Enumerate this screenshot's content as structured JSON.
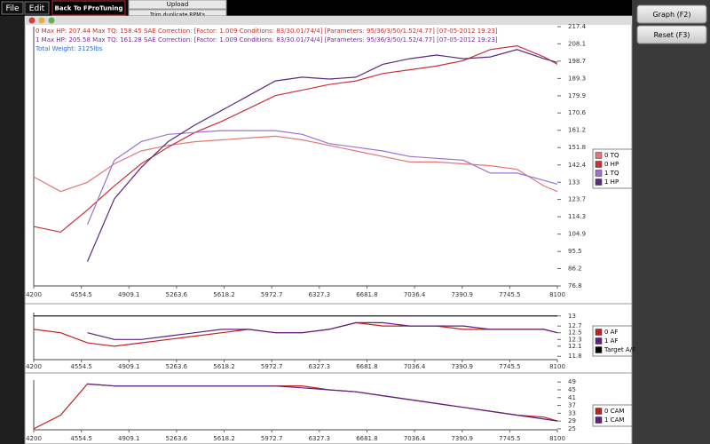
{
  "menu": [
    "File",
    "Edit"
  ],
  "back_button": "Back To FProTuning",
  "tabs": [
    "Upload",
    "Trim duplicate RPM's"
  ],
  "side_buttons": [
    "Graph (F2)",
    "Reset (F3)"
  ],
  "header_lines": [
    "0 Max HP: 207.44 Max TQ: 158.45 SAE Correction: [Factor: 1.009 Conditions: 83/30.01/74/4] [Parameters: 95/36/3/50/1.52/4.77] [07-05-2012 19:23]",
    "1 Max HP: 205.58 Max TQ: 161.28 SAE Correction: [Factor: 1.009 Conditions: 83/30.01/74/4] [Parameters: 95/36/3/50/1.52/4.77] [07-05-2012 19:23]",
    "Total Weight: 3125lbs"
  ],
  "charts": [
    {
      "type": "line",
      "x": [
        4200,
        4400,
        4600,
        4800,
        5000,
        5200,
        5400,
        5600,
        5800,
        6000,
        6200,
        6400,
        6600,
        6800,
        7000,
        7200,
        7400,
        7600,
        7800,
        8000,
        8100
      ],
      "xlim": [
        4200,
        8100
      ],
      "xticks": [
        4200,
        4554.5,
        4909.1,
        5263.6,
        5618.2,
        5972.7,
        6327.3,
        6681.8,
        7036.4,
        7390.9,
        7745.5,
        8100
      ],
      "ylim": [
        76.8,
        217.4
      ],
      "yticks": [
        217.4,
        208.1,
        198.7,
        189.3,
        179.9,
        170.6,
        161.2,
        151.8,
        142.4,
        133,
        123.7,
        114.3,
        104.9,
        95.5,
        86.2,
        76.8
      ],
      "series": [
        {
          "name": "0 TQ",
          "color": "#e07878",
          "values": [
            136,
            128,
            133,
            143,
            150,
            153,
            155,
            156,
            157,
            158,
            156,
            153,
            150,
            147,
            144,
            144,
            143,
            142,
            140,
            131,
            128
          ]
        },
        {
          "name": "0 HP",
          "color": "#c8303c",
          "values": [
            109,
            106,
            118,
            131,
            143,
            152,
            160,
            166,
            173,
            180,
            183,
            186,
            188,
            192,
            194,
            196,
            199,
            205,
            207,
            201,
            197
          ]
        },
        {
          "name": "1 TQ",
          "color": "#a070d0",
          "values": [
            null,
            null,
            110,
            145,
            155,
            159,
            160,
            161,
            161,
            161,
            159,
            154,
            152,
            150,
            147,
            146,
            145,
            138,
            138,
            134,
            132
          ]
        },
        {
          "name": "1 HP",
          "color": "#5a2a80",
          "values": [
            null,
            null,
            90,
            124,
            141,
            155,
            164,
            172,
            180,
            188,
            190,
            189,
            190,
            197,
            200,
            202,
            200,
            201,
            205,
            200,
            198
          ]
        }
      ]
    },
    {
      "type": "line",
      "x": [
        4200,
        4400,
        4600,
        4800,
        5000,
        5200,
        5400,
        5600,
        5800,
        6000,
        6200,
        6400,
        6600,
        6800,
        7000,
        7200,
        7400,
        7600,
        7800,
        8000,
        8100
      ],
      "xlim": [
        4200,
        8100
      ],
      "xticks": [
        4200,
        4554.5,
        4909.1,
        5263.6,
        5618.2,
        5972.7,
        6327.3,
        6681.8,
        7036.4,
        7390.9,
        7745.5,
        8100
      ],
      "ylim": [
        11.7,
        13.1
      ],
      "yticks": [
        13,
        12.7,
        12.5,
        12.3,
        12.1,
        11.8
      ],
      "series": [
        {
          "name": "0 AF",
          "color": "#c02020",
          "values": [
            12.6,
            12.5,
            12.2,
            12.1,
            12.2,
            12.3,
            12.4,
            12.5,
            12.6,
            12.5,
            12.5,
            12.6,
            12.8,
            12.7,
            12.7,
            12.7,
            12.6,
            12.6,
            12.6,
            12.6,
            12.5
          ]
        },
        {
          "name": "1 AF",
          "color": "#602080",
          "values": [
            null,
            null,
            12.5,
            12.3,
            12.3,
            12.4,
            12.5,
            12.6,
            12.6,
            12.5,
            12.5,
            12.6,
            12.8,
            12.8,
            12.7,
            12.7,
            12.7,
            12.6,
            12.6,
            12.6,
            12.5
          ]
        },
        {
          "name": "Target A/F",
          "color": "#000000",
          "values": [
            13,
            13,
            13,
            13,
            13,
            13,
            13,
            13,
            13,
            13,
            13,
            13,
            13,
            13,
            13,
            13,
            13,
            13,
            13,
            13,
            13
          ]
        }
      ]
    },
    {
      "type": "line",
      "x": [
        4200,
        4400,
        4600,
        4800,
        5000,
        5200,
        5400,
        5600,
        5800,
        6000,
        6200,
        6400,
        6600,
        6800,
        7000,
        7200,
        7400,
        7600,
        7800,
        8000,
        8100
      ],
      "xlim": [
        4200,
        8100
      ],
      "xticks": [
        4200,
        4554.5,
        4909.1,
        5263.6,
        5618.2,
        5972.7,
        6327.3,
        6681.8,
        7036.4,
        7390.9,
        7745.5,
        8100
      ],
      "ylim": [
        24.5,
        50
      ],
      "yticks": [
        49,
        45,
        41,
        37,
        33,
        29,
        25
      ],
      "series": [
        {
          "name": "0 CAM",
          "color": "#c02020",
          "values": [
            25,
            32,
            48,
            47,
            47,
            47,
            47,
            47,
            47,
            47,
            47,
            45,
            44,
            42,
            40,
            38,
            36,
            34,
            32,
            31,
            29
          ]
        },
        {
          "name": "1 CAM",
          "color": "#602080",
          "values": [
            null,
            null,
            48,
            47,
            47,
            47,
            47,
            47,
            47,
            47,
            46,
            45,
            44,
            42,
            40,
            38,
            36,
            34,
            32,
            30,
            29
          ]
        }
      ]
    }
  ]
}
